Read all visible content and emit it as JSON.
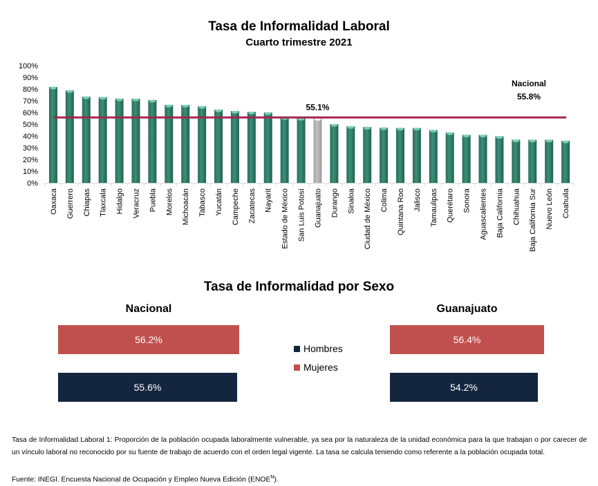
{
  "chart_data": [
    {
      "type": "bar",
      "title": "Tasa de Informalidad Laboral",
      "subtitle": "Cuarto trimestre 2021",
      "xlabel": "",
      "ylabel": "",
      "ylim": [
        0,
        100
      ],
      "yticks": [
        "0%",
        "10%",
        "20%",
        "30%",
        "40%",
        "50%",
        "60%",
        "70%",
        "80%",
        "90%",
        "100%"
      ],
      "grid": false,
      "categories": [
        "Oaxaca",
        "Guerrero",
        "Chiapas",
        "Tlaxcala",
        "Hidalgo",
        "Veracruz",
        "Puebla",
        "Morelos",
        "Michoacán",
        "Tabasco",
        "Yucatán",
        "Campeche",
        "Zacatecas",
        "Nayarit",
        "Estado de México",
        "San Luis Potosí",
        "Guanajuato",
        "Durango",
        "Sinaloa",
        "Ciudad de México",
        "Colima",
        "Quintana Roo",
        "Jalisco",
        "Tamaulipas",
        "Querétaro",
        "Sonora",
        "Aguascalientes",
        "Baja California",
        "Chihuahua",
        "Baja California Sur",
        "Nuevo León",
        "Coahuila"
      ],
      "values": [
        81.8,
        78.8,
        73.5,
        73.1,
        71.8,
        71.7,
        70.6,
        66.5,
        66.4,
        65.3,
        62.4,
        61.2,
        60.6,
        60.0,
        55.9,
        55.3,
        55.1,
        50.0,
        48.2,
        47.6,
        47.1,
        46.8,
        46.8,
        45.0,
        42.9,
        40.9,
        40.9,
        39.7,
        36.8,
        36.7,
        36.7,
        35.9
      ],
      "highlight": {
        "category": "Guanajuato",
        "label": "55.1%"
      },
      "reference_line": {
        "label": "Nacional",
        "value": 55.8,
        "value_label": "55.8%"
      },
      "colors": {
        "bar": "#3a8f78",
        "highlight": "#bfbfbf",
        "reference_line": "#a3264f"
      }
    },
    {
      "type": "bar",
      "orientation": "horizontal",
      "title": "Tasa de Informalidad por Sexo",
      "panels": [
        {
          "name": "Nacional",
          "series": [
            {
              "name": "Mujeres",
              "value": 56.2,
              "label": "56.2%"
            },
            {
              "name": "Hombres",
              "value": 55.6,
              "label": "55.6%"
            }
          ]
        },
        {
          "name": "Guanajuato",
          "series": [
            {
              "name": "Mujeres",
              "value": 56.4,
              "label": "56.4%"
            },
            {
              "name": "Hombres",
              "value": 54.2,
              "label": "54.2%"
            }
          ]
        }
      ],
      "legend": [
        {
          "name": "Hombres",
          "color": "#14263f"
        },
        {
          "name": "Mujeres",
          "color": "#c0504d"
        }
      ],
      "legend_position": "center"
    }
  ],
  "sex": {
    "title": "Tasa de Informalidad por Sexo",
    "nacional": {
      "title": "Nacional",
      "mujeres": "56.2%",
      "hombres": "55.6%"
    },
    "guanajuato": {
      "title": "Guanajuato",
      "mujeres": "56.4%",
      "hombres": "54.2%"
    },
    "legend": {
      "hombres": "Hombres",
      "mujeres": "Mujeres"
    }
  },
  "footnote": {
    "definition": "Tasa de Informalidad Laboral 1: Proporción de la población ocupada laboralmente vulnerable, ya sea por la naturaleza de la unidad económica para la que trabajan o por carecer de un vínculo laboral no reconocido por su fuente de trabajo de acuerdo con el orden legal vigente. La tasa se calcula teniendo como referente a la población ocupada total.",
    "source_prefix": "Fuente: INEGI. Encuesta Nacional de Ocupación y Empleo Nueva Edición (ENOE",
    "source_sup": "N",
    "source_suffix": ")."
  }
}
